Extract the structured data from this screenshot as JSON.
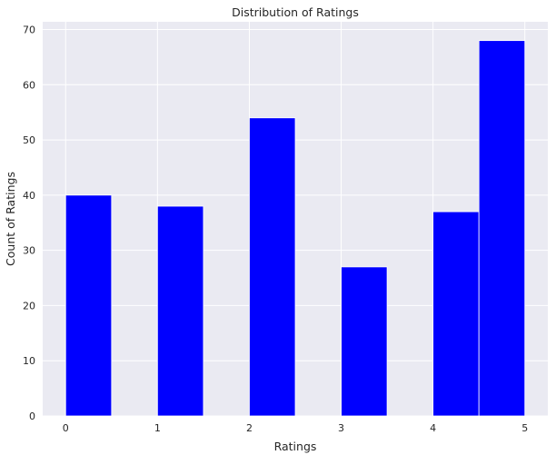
{
  "chart_data": {
    "type": "bar",
    "title": "Distribution of Ratings",
    "xlabel": "Ratings",
    "ylabel": "Count of Ratings",
    "xlim": [
      -0.25,
      5.25
    ],
    "ylim": [
      0,
      71.4
    ],
    "xticks": [
      0,
      1,
      2,
      3,
      4,
      5
    ],
    "yticks": [
      0,
      10,
      20,
      30,
      40,
      50,
      60,
      70
    ],
    "bins": [
      {
        "x0": 0.0,
        "x1": 0.5,
        "value": 40
      },
      {
        "x0": 1.0,
        "x1": 1.5,
        "value": 38
      },
      {
        "x0": 2.0,
        "x1": 2.5,
        "value": 54
      },
      {
        "x0": 3.0,
        "x1": 3.5,
        "value": 27
      },
      {
        "x0": 4.0,
        "x1": 4.5,
        "value": 37
      },
      {
        "x0": 4.5,
        "x1": 5.0,
        "value": 68
      }
    ],
    "bar_color": "#0000ff",
    "background_color": "#eaeaf2",
    "grid_color": "#ffffff",
    "grid": true
  }
}
